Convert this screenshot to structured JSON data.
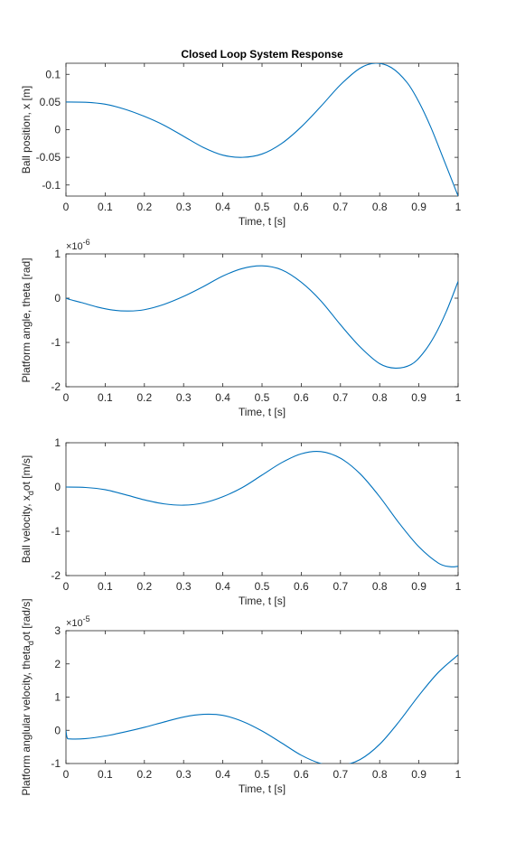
{
  "figure": {
    "title": "Closed Loop System Response",
    "line_color": "#0072bd",
    "axes_color": "#262626"
  },
  "chart_data": [
    {
      "type": "line",
      "title": "Closed Loop System Response",
      "xlabel": "Time, t [s]",
      "ylabel": "Ball position, x [m]",
      "xlim": [
        0,
        1
      ],
      "ylim": [
        -0.12,
        0.12
      ],
      "xticks": [
        0,
        0.1,
        0.2,
        0.3,
        0.4,
        0.5,
        0.6,
        0.7,
        0.8,
        0.9,
        1
      ],
      "xtick_labels": [
        "0",
        "0.1",
        "0.2",
        "0.3",
        "0.4",
        "0.5",
        "0.6",
        "0.7",
        "0.8",
        "0.9",
        "1"
      ],
      "yticks": [
        -0.1,
        -0.05,
        0,
        0.05,
        0.1
      ],
      "ytick_labels": [
        "-0.1",
        "-0.05",
        "0",
        "0.05",
        "0.1"
      ],
      "exponent": "",
      "grid": false,
      "series": [
        {
          "x": [
            0,
            0.05,
            0.1,
            0.15,
            0.2,
            0.25,
            0.3,
            0.35,
            0.4,
            0.45,
            0.5,
            0.55,
            0.6,
            0.65,
            0.7,
            0.75,
            0.79,
            0.83,
            0.87,
            0.9,
            0.93,
            0.96,
            1.0
          ],
          "y": [
            0.05,
            0.0495,
            0.046,
            0.037,
            0.024,
            0.008,
            -0.012,
            -0.032,
            -0.046,
            -0.05,
            -0.044,
            -0.025,
            0.005,
            0.042,
            0.081,
            0.111,
            0.12,
            0.112,
            0.085,
            0.05,
            0.005,
            -0.048,
            -0.12
          ]
        }
      ]
    },
    {
      "type": "line",
      "title": "",
      "xlabel": "Time, t [s]",
      "ylabel": "Platform angle, theta [rad]",
      "xlim": [
        0,
        1
      ],
      "ylim": [
        -2,
        1
      ],
      "xticks": [
        0,
        0.1,
        0.2,
        0.3,
        0.4,
        0.5,
        0.6,
        0.7,
        0.8,
        0.9,
        1
      ],
      "xtick_labels": [
        "0",
        "0.1",
        "0.2",
        "0.3",
        "0.4",
        "0.5",
        "0.6",
        "0.7",
        "0.8",
        "0.9",
        "1"
      ],
      "yticks": [
        -2,
        -1,
        0,
        1
      ],
      "ytick_labels": [
        "-2",
        "-1",
        "0",
        "1"
      ],
      "exponent": "-6",
      "grid": false,
      "series": [
        {
          "x": [
            0,
            0.01,
            0.04,
            0.08,
            0.12,
            0.16,
            0.2,
            0.25,
            0.3,
            0.35,
            0.4,
            0.45,
            0.5,
            0.55,
            0.6,
            0.65,
            0.7,
            0.75,
            0.8,
            0.84,
            0.88,
            0.91,
            0.94,
            0.97,
            1.0
          ],
          "y": [
            0.0,
            -0.03,
            -0.1,
            -0.2,
            -0.27,
            -0.29,
            -0.26,
            -0.14,
            0.04,
            0.26,
            0.5,
            0.67,
            0.73,
            0.64,
            0.36,
            -0.06,
            -0.6,
            -1.1,
            -1.48,
            -1.58,
            -1.5,
            -1.25,
            -0.85,
            -0.3,
            0.38
          ]
        }
      ]
    },
    {
      "type": "line",
      "title": "",
      "xlabel": "Time, t [s]",
      "ylabel": "Ball velocity, x_dot [m/s]",
      "ylabel_main": "Ball velocity, x",
      "ylabel_sub": "d",
      "ylabel_tail": "ot [m/s]",
      "xlim": [
        0,
        1
      ],
      "ylim": [
        -2,
        1
      ],
      "xticks": [
        0,
        0.1,
        0.2,
        0.3,
        0.4,
        0.5,
        0.6,
        0.7,
        0.8,
        0.9,
        1
      ],
      "xtick_labels": [
        "0",
        "0.1",
        "0.2",
        "0.3",
        "0.4",
        "0.5",
        "0.6",
        "0.7",
        "0.8",
        "0.9",
        "1"
      ],
      "yticks": [
        -2,
        -1,
        0,
        1
      ],
      "ytick_labels": [
        "-2",
        "-1",
        "0",
        "1"
      ],
      "exponent": "",
      "grid": false,
      "series": [
        {
          "x": [
            0,
            0.05,
            0.1,
            0.15,
            0.2,
            0.25,
            0.3,
            0.35,
            0.4,
            0.45,
            0.5,
            0.55,
            0.6,
            0.65,
            0.7,
            0.75,
            0.8,
            0.85,
            0.9,
            0.95,
            0.98,
            1.0
          ],
          "y": [
            0.0,
            -0.01,
            -0.06,
            -0.17,
            -0.29,
            -0.38,
            -0.41,
            -0.36,
            -0.22,
            -0.01,
            0.27,
            0.55,
            0.75,
            0.8,
            0.65,
            0.3,
            -0.22,
            -0.82,
            -1.35,
            -1.72,
            -1.8,
            -1.79
          ]
        }
      ]
    },
    {
      "type": "line",
      "title": "",
      "xlabel": "Time, t [s]",
      "ylabel": "Platform anglular velocity, theta_dot [rad/s]",
      "ylabel_main": "Platform anglular velocity, theta",
      "ylabel_sub": "d",
      "ylabel_tail": "ot [rad/s]",
      "xlim": [
        0,
        1
      ],
      "ylim": [
        -1,
        3
      ],
      "xticks": [
        0,
        0.1,
        0.2,
        0.3,
        0.4,
        0.5,
        0.6,
        0.7,
        0.8,
        0.9,
        1
      ],
      "xtick_labels": [
        "0",
        "0.1",
        "0.2",
        "0.3",
        "0.4",
        "0.5",
        "0.6",
        "0.7",
        "0.8",
        "0.9",
        "1"
      ],
      "yticks": [
        -1,
        0,
        1,
        2,
        3
      ],
      "ytick_labels": [
        "-1",
        "0",
        "1",
        "2",
        "3"
      ],
      "exponent": "-5",
      "grid": false,
      "series": [
        {
          "x": [
            0,
            0.003,
            0.01,
            0.05,
            0.1,
            0.15,
            0.2,
            0.25,
            0.3,
            0.35,
            0.4,
            0.45,
            0.5,
            0.55,
            0.6,
            0.65,
            0.7,
            0.75,
            0.8,
            0.85,
            0.9,
            0.95,
            1.0
          ],
          "y": [
            0.0,
            -0.22,
            -0.26,
            -0.25,
            -0.17,
            -0.05,
            0.09,
            0.25,
            0.4,
            0.48,
            0.45,
            0.27,
            -0.02,
            -0.38,
            -0.75,
            -1.0,
            -1.06,
            -0.88,
            -0.42,
            0.27,
            1.05,
            1.75,
            2.27
          ]
        }
      ]
    }
  ]
}
